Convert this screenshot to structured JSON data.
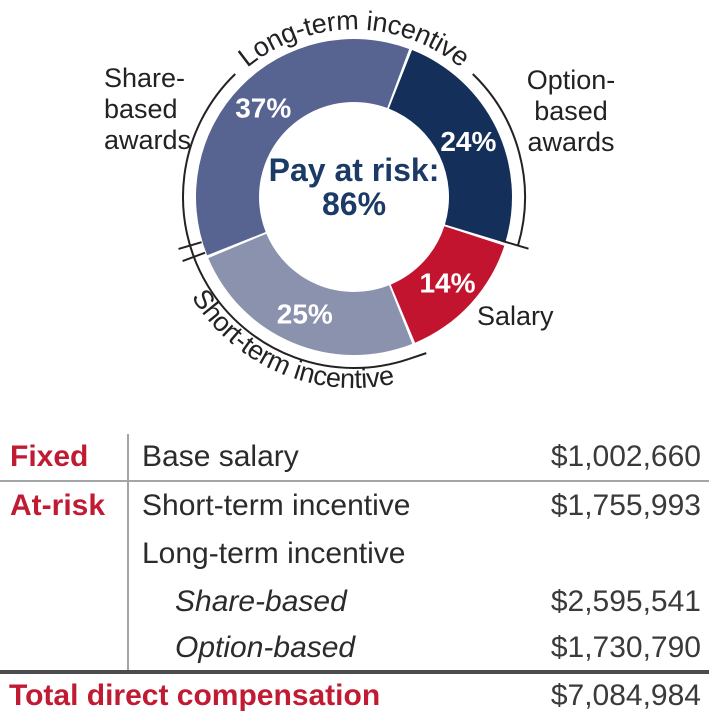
{
  "chart_data": {
    "type": "donut",
    "center_label": "Pay at risk:",
    "center_value": "86%",
    "segments": [
      {
        "label": "Option-based awards",
        "pct": 24,
        "pct_label": "24%",
        "color": "#14305a"
      },
      {
        "label": "Salary",
        "pct": 14,
        "pct_label": "14%",
        "color": "#c2142f"
      },
      {
        "label": "Short-term incentive",
        "pct": 25,
        "pct_label": "25%",
        "color": "#8a92ae"
      },
      {
        "label": "Share-based awards",
        "pct": 37,
        "pct_label": "37%",
        "color": "#576390"
      }
    ],
    "arc_labels": {
      "top": "Long-term incentive",
      "bottom": "Short-term incentive"
    },
    "side_labels": {
      "share": "Share-\nbased\nawards",
      "option": "Option-\nbased\nawards",
      "salary": "Salary"
    },
    "layout": {
      "start_angle_deg": 21,
      "legend": "none",
      "grid": false
    }
  },
  "table": {
    "rows": [
      {
        "category": "Fixed",
        "item": "Base salary",
        "value": "$1,002,660"
      },
      {
        "category": "At-risk",
        "item": "Short-term incentive",
        "value": "$1,755,993"
      },
      {
        "category": "",
        "item": "Long-term incentive",
        "value": ""
      },
      {
        "category": "",
        "item": "Share-based",
        "value": "$2,595,541"
      },
      {
        "category": "",
        "item": "Option-based",
        "value": "$1,730,790"
      }
    ],
    "total": {
      "label": "Total direct compensation",
      "value": "$7,084,984"
    }
  }
}
